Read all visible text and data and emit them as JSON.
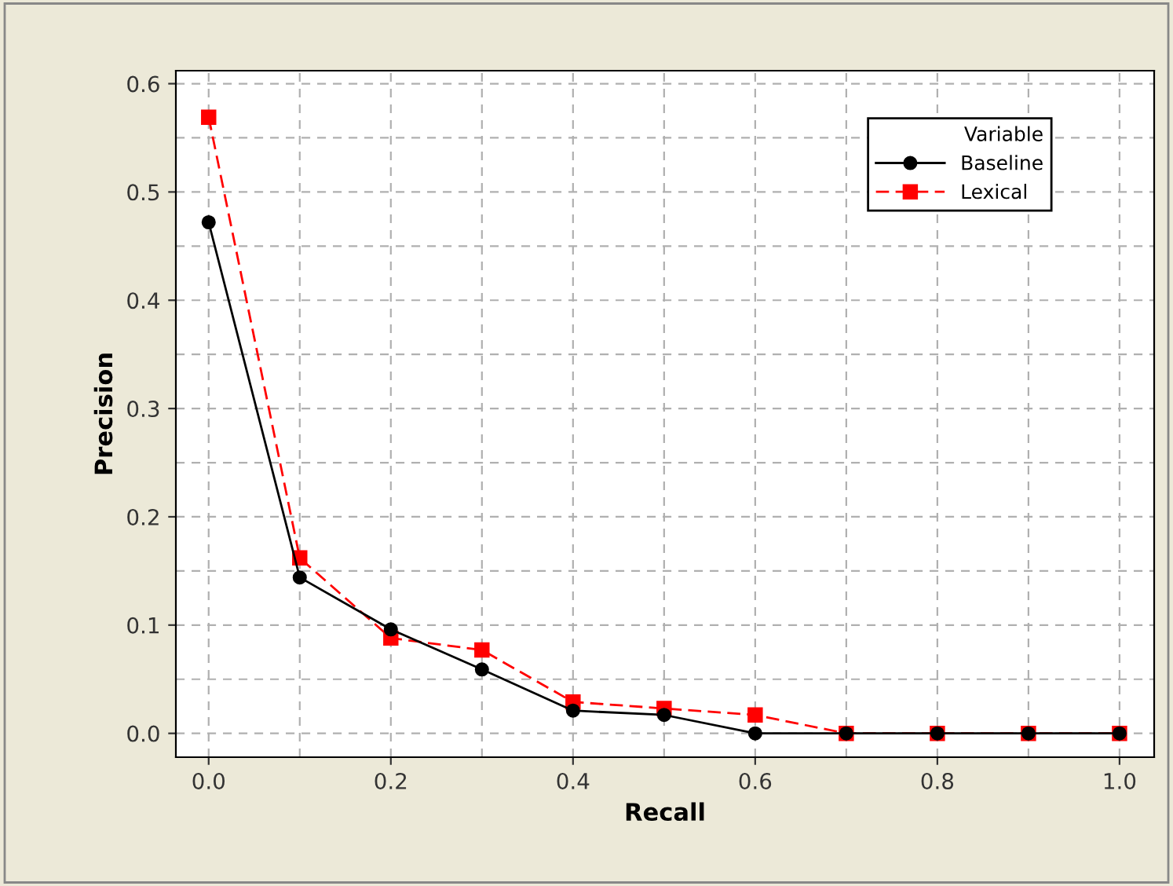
{
  "chart_data": {
    "type": "line",
    "xlabel": "Recall",
    "ylabel": "Precision",
    "legend_title": "Variable",
    "legend": "top right",
    "grid": true,
    "x": [
      0.0,
      0.1,
      0.2,
      0.3,
      0.4,
      0.5,
      0.6,
      0.7,
      0.8,
      0.9,
      1.0
    ],
    "series": [
      {
        "name": "Baseline",
        "color": "#000000",
        "marker": "circle",
        "line_style": "solid",
        "values": [
          0.472,
          0.144,
          0.096,
          0.059,
          0.021,
          0.017,
          0,
          0,
          0,
          0,
          0
        ]
      },
      {
        "name": "Lexical",
        "color": "#ff0000",
        "marker": "square",
        "line_style": "dashed",
        "values": [
          0.569,
          0.162,
          0.088,
          0.077,
          0.029,
          0.023,
          0.017,
          0,
          0,
          0,
          0
        ]
      }
    ],
    "xlim": [
      -0.036,
      1.038
    ],
    "ylim": [
      -0.022,
      0.612
    ],
    "xticks": [
      {
        "value": 0.0,
        "label": "0.0"
      },
      {
        "value": 0.1,
        "label": null
      },
      {
        "value": 0.2,
        "label": "0.2"
      },
      {
        "value": 0.3,
        "label": null
      },
      {
        "value": 0.4,
        "label": "0.4"
      },
      {
        "value": 0.5,
        "label": null
      },
      {
        "value": 0.6,
        "label": "0.6"
      },
      {
        "value": 0.7,
        "label": null
      },
      {
        "value": 0.8,
        "label": "0.8"
      },
      {
        "value": 0.9,
        "label": null
      },
      {
        "value": 1.0,
        "label": "1.0"
      }
    ],
    "yticks": [
      {
        "value": 0.0,
        "label": "0.0"
      },
      {
        "value": 0.05,
        "label": null
      },
      {
        "value": 0.1,
        "label": "0.1"
      },
      {
        "value": 0.15,
        "label": null
      },
      {
        "value": 0.2,
        "label": "0.2"
      },
      {
        "value": 0.25,
        "label": null
      },
      {
        "value": 0.3,
        "label": "0.3"
      },
      {
        "value": 0.35,
        "label": null
      },
      {
        "value": 0.4,
        "label": "0.4"
      },
      {
        "value": 0.45,
        "label": null
      },
      {
        "value": 0.5,
        "label": "0.5"
      },
      {
        "value": 0.55,
        "label": null
      },
      {
        "value": 0.6,
        "label": "0.6"
      }
    ]
  }
}
